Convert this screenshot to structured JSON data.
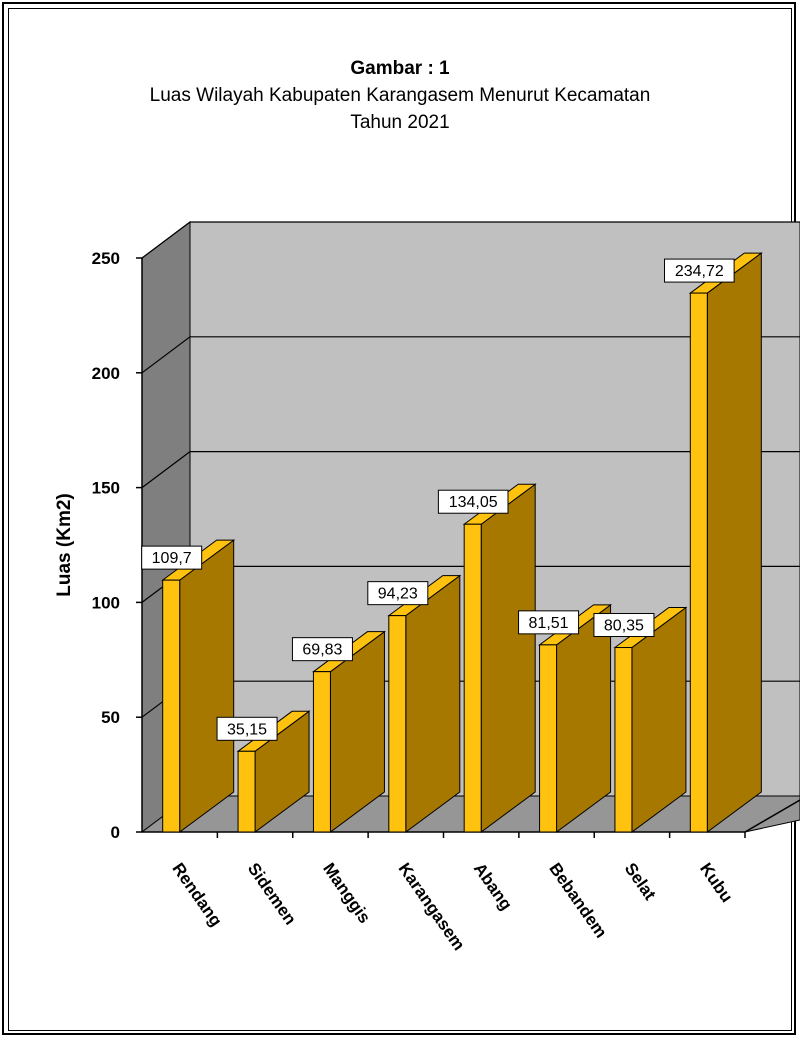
{
  "chart_data": {
    "type": "bar",
    "title": "Gambar : 1",
    "subtitle": "Luas Wilayah Kabupaten Karangasem Menurut Kecamatan",
    "subtitle2": "Tahun 2021",
    "ylabel": "Luas (Km2)",
    "xlabel": "",
    "ylim": [
      0,
      250
    ],
    "yticks": [
      "0",
      "50",
      "100",
      "150",
      "200",
      "250"
    ],
    "categories": [
      "Rendang",
      "Sidemen",
      "Manggis",
      "Karangasem",
      "Abang",
      "Bebandem",
      "Selat",
      "Kubu"
    ],
    "values": [
      109.7,
      35.15,
      69.83,
      94.23,
      134.05,
      81.51,
      80.35,
      234.72
    ],
    "value_labels": [
      "109,7",
      "35,15",
      "69,83",
      "94,23",
      "134,05",
      "81,51",
      "80,35",
      "234,72"
    ],
    "grid": true,
    "legend": "none",
    "colors": {
      "bar_front": "#ffc20e",
      "bar_side": "#a67800",
      "wall": "#c0c0c0",
      "side_wall": "#7f7f7f",
      "floor": "#969696"
    }
  }
}
